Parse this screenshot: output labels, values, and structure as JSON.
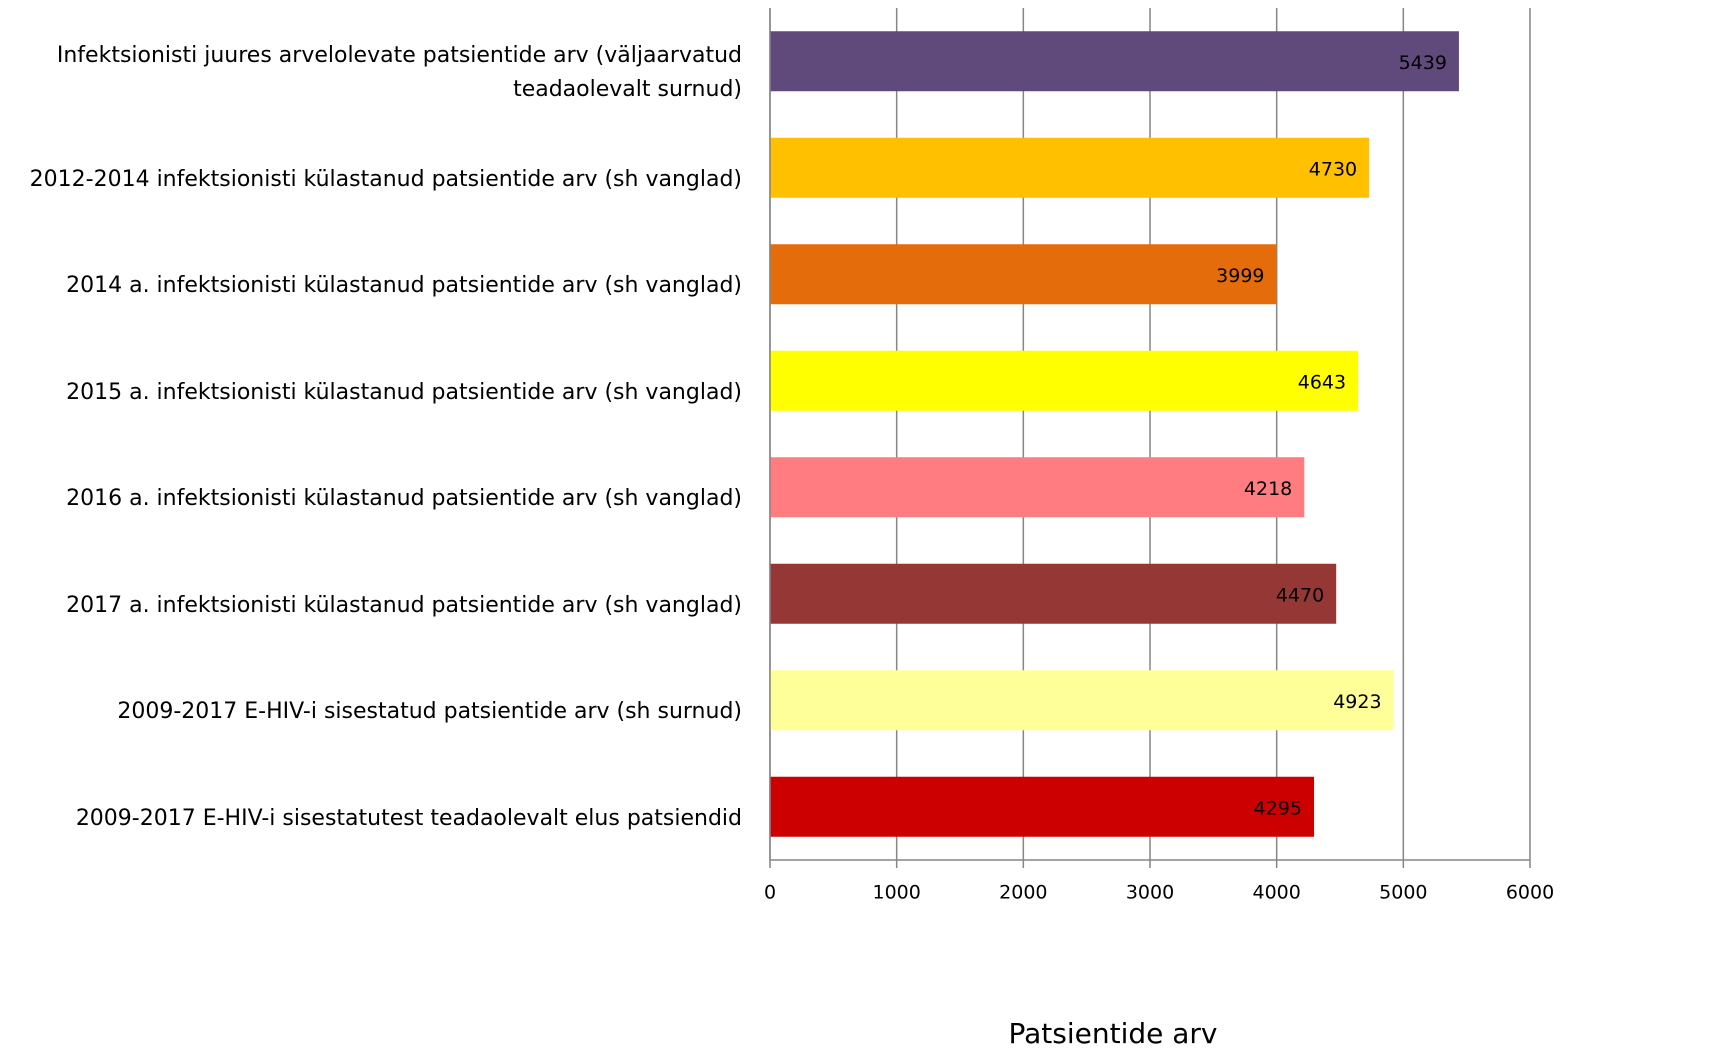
{
  "chart_data": {
    "type": "barh",
    "categories": [
      "Infektsionisti juures arvelolevate patsientide arv (väljaarvatud teadaolevalt surnud)",
      "2012-2014 infektsionisti külastanud patsientide arv (sh vanglad)",
      "2014 a. infektsionisti külastanud patsientide arv (sh vanglad)",
      "2015 a. infektsionisti külastanud patsientide arv (sh vanglad)",
      "2016 a. infektsionisti külastanud patsientide arv (sh vanglad)",
      "2017 a.  infektsionisti külastanud patsientide arv (sh vanglad)",
      "2009-2017 E-HIV-i sisestatud patsientide arv (sh surnud)",
      "2009-2017 E-HIV-i sisestatutest teadaolevalt elus patsiendid"
    ],
    "values": [
      5439,
      4730,
      3999,
      4643,
      4218,
      4470,
      4923,
      4295
    ],
    "colors": [
      "#604a7b",
      "#ffc000",
      "#e46c0a",
      "#ffff00",
      "#ff7c80",
      "#953735",
      "#ffff99",
      "#cc0000"
    ],
    "xlim": [
      0,
      6000
    ],
    "xticks": [
      0,
      1000,
      2000,
      3000,
      4000,
      5000,
      6000
    ],
    "xlabel": "Patsientide arv",
    "grid": true
  }
}
